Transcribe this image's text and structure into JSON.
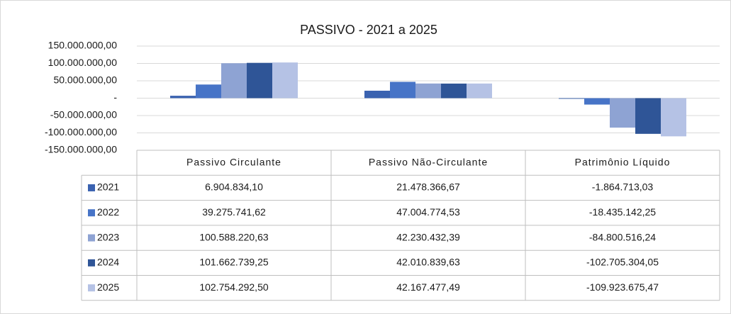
{
  "chart_data": {
    "type": "bar",
    "title": "PASSIVO  - 2021 a 2025",
    "categories": [
      "Passivo Circulante",
      "Passivo Não-Circulante",
      "Patrimônio Líquido"
    ],
    "series": [
      {
        "name": "2021",
        "color": "#3a62b0",
        "values": [
          6904834.1,
          21478366.67,
          -1864713.03
        ],
        "value_labels": [
          "6.904.834,10",
          "21.478.366,67",
          "-1.864.713,03"
        ]
      },
      {
        "name": "2022",
        "color": "#4774c7",
        "values": [
          39275741.62,
          47004774.53,
          -18435142.25
        ],
        "value_labels": [
          "39.275.741,62",
          "47.004.774,53",
          "-18.435.142,25"
        ]
      },
      {
        "name": "2023",
        "color": "#8ea3d3",
        "values": [
          100588220.63,
          42230432.39,
          -84800516.24
        ],
        "value_labels": [
          "100.588.220,63",
          "42.230.432,39",
          "-84.800.516,24"
        ]
      },
      {
        "name": "2024",
        "color": "#2f5597",
        "values": [
          101662739.25,
          42010839.63,
          -102705304.05
        ],
        "value_labels": [
          "101.662.739,25",
          "42.010.839,63",
          "-102.705.304,05"
        ]
      },
      {
        "name": "2025",
        "color": "#b5c2e5",
        "values": [
          102754292.5,
          42167477.49,
          -109923675.47
        ],
        "value_labels": [
          "102.754.292,50",
          "42.167.477,49",
          "-109.923.675,47"
        ]
      }
    ],
    "ylim": [
      -150000000,
      150000000
    ],
    "yticks": [
      {
        "value": 150000000,
        "label": "150.000.000,00"
      },
      {
        "value": 100000000,
        "label": "100.000.000,00"
      },
      {
        "value": 50000000,
        "label": "50.000.000,00"
      },
      {
        "value": 0,
        "label": "-"
      },
      {
        "value": -50000000,
        "label": "-50.000.000,00"
      },
      {
        "value": -100000000,
        "label": "-100.000.000,00"
      },
      {
        "value": -150000000,
        "label": "-150.000.000,00"
      }
    ],
    "grid": true
  }
}
